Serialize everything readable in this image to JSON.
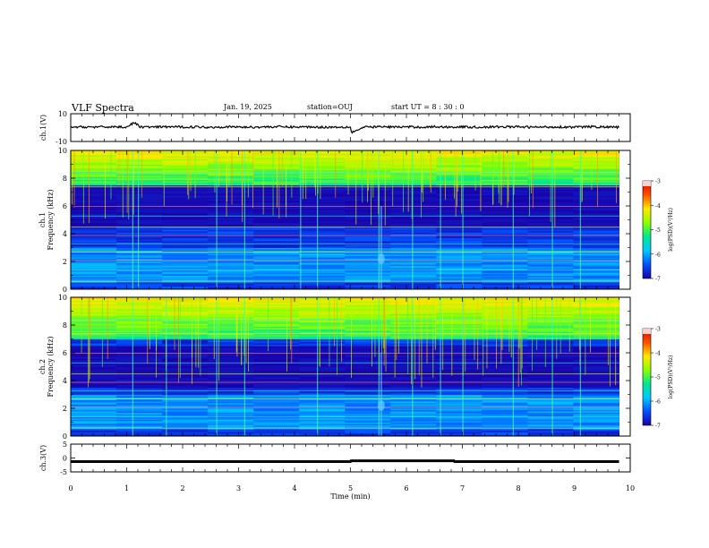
{
  "header": {
    "title": "VLF Spectra",
    "date": "Jan. 19, 2025",
    "station": "station=OUJ",
    "start_ut": "start UT =  8 : 30 : 0"
  },
  "colors": {
    "trace": "#000000",
    "background": "#ffffff",
    "colormap": [
      "#1a00a8",
      "#0050ff",
      "#00c8ff",
      "#00e890",
      "#8cff00",
      "#ffe800",
      "#ff5000",
      "#e00000",
      "#ffffff"
    ]
  },
  "chart_data": [
    {
      "type": "line",
      "ylabel": "ch.1(V)",
      "ylim": [
        -10,
        10
      ],
      "yticks": [
        "10",
        "-10"
      ],
      "x": [
        0,
        0.25,
        0.5,
        0.75,
        1.0,
        1.13,
        1.25,
        1.5,
        1.75,
        2.0,
        2.25,
        2.5,
        2.75,
        3.0,
        3.25,
        3.5,
        3.75,
        4.0,
        4.25,
        4.5,
        4.75,
        5.0,
        5.02,
        5.25,
        5.5,
        5.75,
        6.0,
        6.25,
        6.5,
        6.75,
        7.0,
        7.25,
        7.5,
        7.75,
        8.0,
        8.25,
        8.5,
        8.75,
        9.0,
        9.25,
        9.5,
        9.8
      ],
      "y": [
        0.2,
        0.5,
        0.3,
        0.6,
        0.4,
        3.5,
        0.5,
        0.3,
        0.6,
        0.4,
        0.5,
        0.2,
        0.6,
        0.4,
        0.3,
        0.5,
        0.6,
        0.4,
        0.5,
        0.3,
        0.4,
        0.5,
        -3.5,
        0.3,
        0.6,
        0.4,
        0.5,
        0.3,
        0.6,
        0.4,
        0.5,
        0.3,
        0.4,
        0.6,
        0.5,
        0.3,
        0.4,
        0.5,
        0.3,
        0.6,
        0.4,
        0.3
      ]
    },
    {
      "type": "heatmap",
      "ylabel_top": "ch.1",
      "ylabel": "Frequency (kHz)",
      "ylim": [
        0,
        10
      ],
      "yticks": [
        "0",
        "2",
        "4",
        "6",
        "8",
        "10"
      ],
      "colorbar": {
        "label": "log(PSD)(V²/Hz)",
        "range": [
          -7,
          -3
        ],
        "ticks": [
          "-3",
          "-4",
          "-5",
          "-6",
          "-7"
        ]
      },
      "features": {
        "dark_band_khz": [
          4.5,
          7.5
        ],
        "bright_band_khz": [
          7.5,
          10
        ],
        "low_band_khz": [
          0.5,
          3
        ],
        "spike_times_min": [
          1.1,
          1.2,
          2.6,
          3.1,
          4.1,
          4.4,
          5.5,
          6.1,
          6.6,
          7.0,
          7.9,
          8.6,
          9.1
        ],
        "event_time_min": 5.55,
        "event_freq_khz": 2.2
      }
    },
    {
      "type": "heatmap",
      "ylabel_top": "ch.2",
      "ylabel": "Frequency (kHz)",
      "ylim": [
        0,
        10
      ],
      "yticks": [
        "0",
        "2",
        "4",
        "6",
        "8",
        "10"
      ],
      "colorbar": {
        "label": "log(PSD)(V²/Hz)",
        "range": [
          -7,
          -3
        ],
        "ticks": [
          "-3",
          "-4",
          "-5",
          "-6",
          "-7"
        ]
      },
      "features": {
        "dark_band_khz": [
          3.5,
          6.5
        ],
        "bright_band_khz": [
          7,
          10
        ],
        "low_band_khz": [
          0.5,
          3
        ],
        "spike_times_min": [
          1.1,
          1.7,
          2.6,
          3.1,
          4.4,
          5.5,
          6.1,
          6.6,
          7.0,
          7.9,
          8.6,
          9.1
        ],
        "event_time_min": 5.55,
        "event_freq_khz": 2.2
      }
    },
    {
      "type": "line",
      "ylabel": "ch.3(V)",
      "ylim": [
        -5,
        5
      ],
      "yticks": [
        "5",
        "0",
        "-5"
      ],
      "x": [
        0,
        5.0,
        5.01,
        6.85,
        6.86,
        9.8
      ],
      "y": [
        -1.3,
        -1.3,
        -1.0,
        -1.0,
        -1.3,
        -1.3
      ],
      "xlabel": "Time (min)",
      "xlim": [
        0,
        10
      ],
      "xticks": [
        "0",
        "1",
        "2",
        "3",
        "4",
        "5",
        "6",
        "7",
        "8",
        "9",
        "10"
      ]
    }
  ]
}
